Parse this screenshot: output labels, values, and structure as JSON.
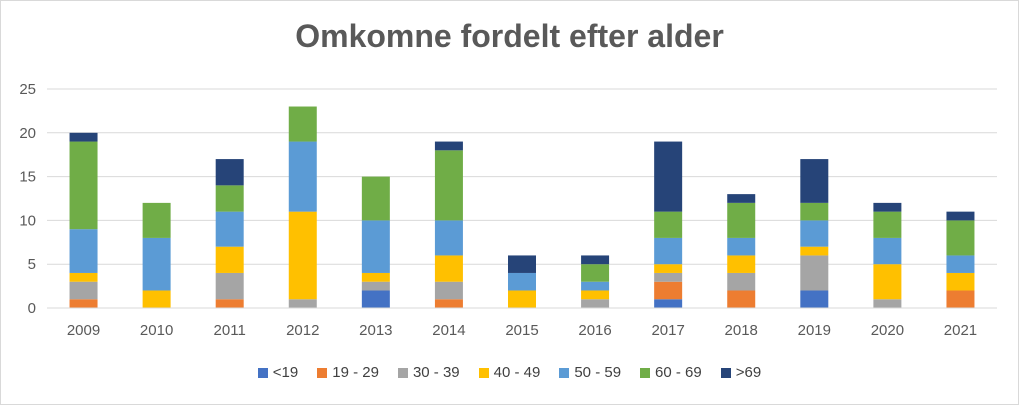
{
  "chart_data": {
    "type": "bar",
    "stacked": true,
    "title": "Omkomne fordelt efter alder",
    "xlabel": "",
    "ylabel": "",
    "ylim": [
      0,
      25
    ],
    "yticks": [
      0,
      5,
      10,
      15,
      20,
      25
    ],
    "grid": true,
    "legend_position": "bottom",
    "categories": [
      "2009",
      "2010",
      "2011",
      "2012",
      "2013",
      "2014",
      "2015",
      "2016",
      "2017",
      "2018",
      "2019",
      "2020",
      "2021"
    ],
    "series": [
      {
        "name": "<19",
        "color": "#4472c4",
        "values": [
          0,
          0,
          0,
          0,
          2,
          0,
          0,
          0,
          1,
          0,
          2,
          0,
          0
        ]
      },
      {
        "name": "19 - 29",
        "color": "#ed7d31",
        "values": [
          1,
          0,
          1,
          0,
          0,
          1,
          0,
          0,
          2,
          2,
          0,
          0,
          2
        ]
      },
      {
        "name": "30 - 39",
        "color": "#a5a5a5",
        "values": [
          2,
          0,
          3,
          1,
          1,
          2,
          0,
          1,
          1,
          2,
          4,
          1,
          0
        ]
      },
      {
        "name": "40 - 49",
        "color": "#ffc000",
        "values": [
          1,
          2,
          3,
          10,
          1,
          3,
          2,
          1,
          1,
          2,
          1,
          4,
          2
        ]
      },
      {
        "name": "50 - 59",
        "color": "#5b9bd5",
        "values": [
          5,
          6,
          4,
          8,
          6,
          4,
          2,
          1,
          3,
          2,
          3,
          3,
          2
        ]
      },
      {
        "name": "60 - 69",
        "color": "#70ad47",
        "values": [
          10,
          4,
          3,
          4,
          5,
          8,
          0,
          2,
          3,
          4,
          2,
          3,
          4
        ]
      },
      {
        "name": ">69",
        "color": "#264478",
        "values": [
          1,
          0,
          3,
          0,
          0,
          1,
          2,
          1,
          8,
          1,
          5,
          1,
          1
        ]
      }
    ]
  }
}
